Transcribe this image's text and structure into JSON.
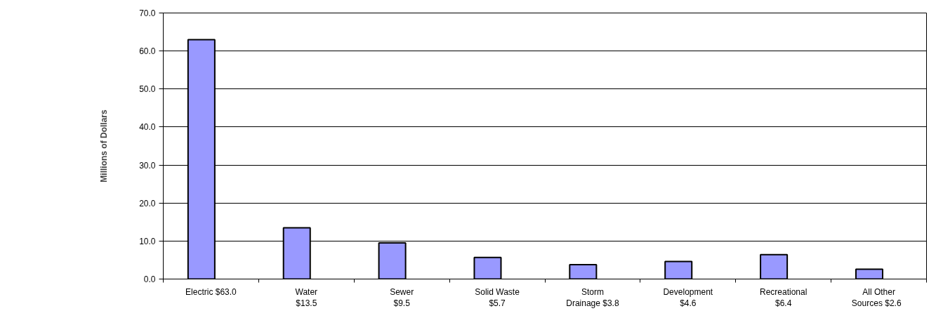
{
  "chart_data": {
    "type": "bar",
    "ylabel": "Millions of Dollars",
    "categories": [
      "Electric $63.0",
      "Water\n$13.5",
      "Sewer\n$9.5",
      "Solid Waste\n$5.7",
      "Storm\nDrainage $3.8",
      "Development\n$4.6",
      "Recreational\n$6.4",
      "All Other\nSources   $2.6"
    ],
    "values": [
      63.0,
      13.5,
      9.5,
      5.7,
      3.8,
      4.6,
      6.4,
      2.6
    ],
    "color": "#9999ff",
    "ylim": [
      0,
      70
    ],
    "yticks": [
      {
        "value": 0,
        "label": "0.0"
      },
      {
        "value": 10,
        "label": "10.0"
      },
      {
        "value": 20,
        "label": "20.0"
      },
      {
        "value": 30,
        "label": "30.0"
      },
      {
        "value": 40,
        "label": "40.0"
      },
      {
        "value": 50,
        "label": "50.0"
      },
      {
        "value": 60,
        "label": "60.0"
      },
      {
        "value": 70,
        "label": "70.0"
      }
    ],
    "grid": "y"
  }
}
